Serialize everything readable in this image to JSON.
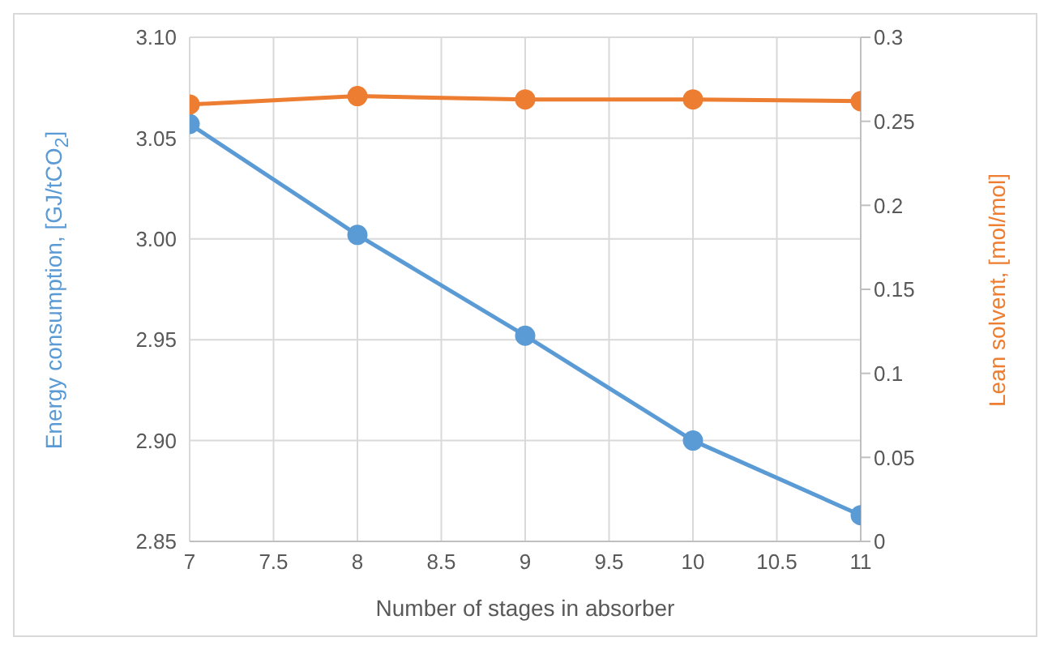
{
  "chart_data": {
    "type": "line",
    "xlabel": "Number of stages in absorber",
    "ylabel": "Energy consumption, [GJ/tCO$_{2}$]",
    "y2label": "Lean solvent, [mol/mol]",
    "x": [
      7,
      8,
      9,
      10,
      11
    ],
    "series": [
      {
        "color": "#5b9bd5",
        "values": [
          3.057,
          3.002,
          2.952,
          2.9,
          2.863
        ]
      },
      {
        "color": "#ed7d31",
        "axis": "y2",
        "values": [
          0.26,
          0.265,
          0.263,
          0.263,
          0.262
        ]
      }
    ],
    "xlim": [
      7,
      11
    ],
    "xticks": [
      7,
      7.5,
      8,
      8.5,
      9,
      9.5,
      10,
      10.5,
      11
    ],
    "ylim": [
      2.85,
      3.1
    ],
    "yticks": [
      2.85,
      {
        "value": 2.9,
        "label": "2.90"
      },
      2.95,
      {
        "value": 3,
        "label": "3.00"
      },
      3.05,
      {
        "value": 3.1,
        "label": "3.10"
      }
    ],
    "y2lim": [
      0,
      0.3
    ],
    "y2ticks": [
      0,
      0.05,
      0.1,
      0.15,
      0.2,
      0.25,
      0.3
    ],
    "grid": true,
    "marker": "circle",
    "line_style": "solid",
    "legend": false
  }
}
